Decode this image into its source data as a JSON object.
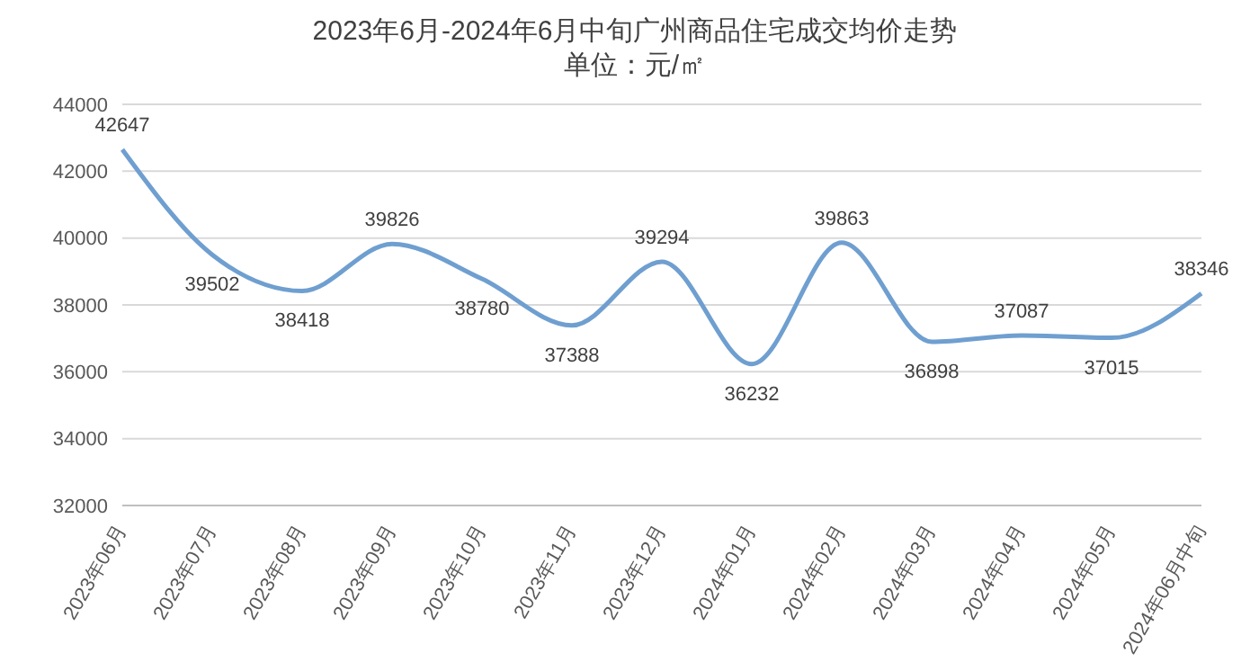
{
  "chart_data": {
    "type": "line",
    "title": "2023年6月-2024年6月中旬广州商品住宅成交均价走势",
    "subtitle": "单位：元/㎡",
    "categories": [
      "2023年06月",
      "2023年07月",
      "2023年08月",
      "2023年09月",
      "2023年10月",
      "2023年11月",
      "2023年12月",
      "2024年01月",
      "2024年02月",
      "2024年03月",
      "2024年04月",
      "2024年05月",
      "2024年06月中旬"
    ],
    "series": [
      {
        "color": "#6f9fd0",
        "values": [
          42647,
          39502,
          38418,
          39826,
          38780,
          37388,
          39294,
          36232,
          39863,
          36898,
          37087,
          37015,
          38346
        ]
      }
    ],
    "ylim": [
      32000,
      44000
    ],
    "yticks": [
      32000,
      34000,
      36000,
      38000,
      40000,
      42000,
      44000
    ],
    "grid": "y",
    "data_labels": true,
    "marker": "none",
    "line_style": "solid",
    "legend": false
  }
}
